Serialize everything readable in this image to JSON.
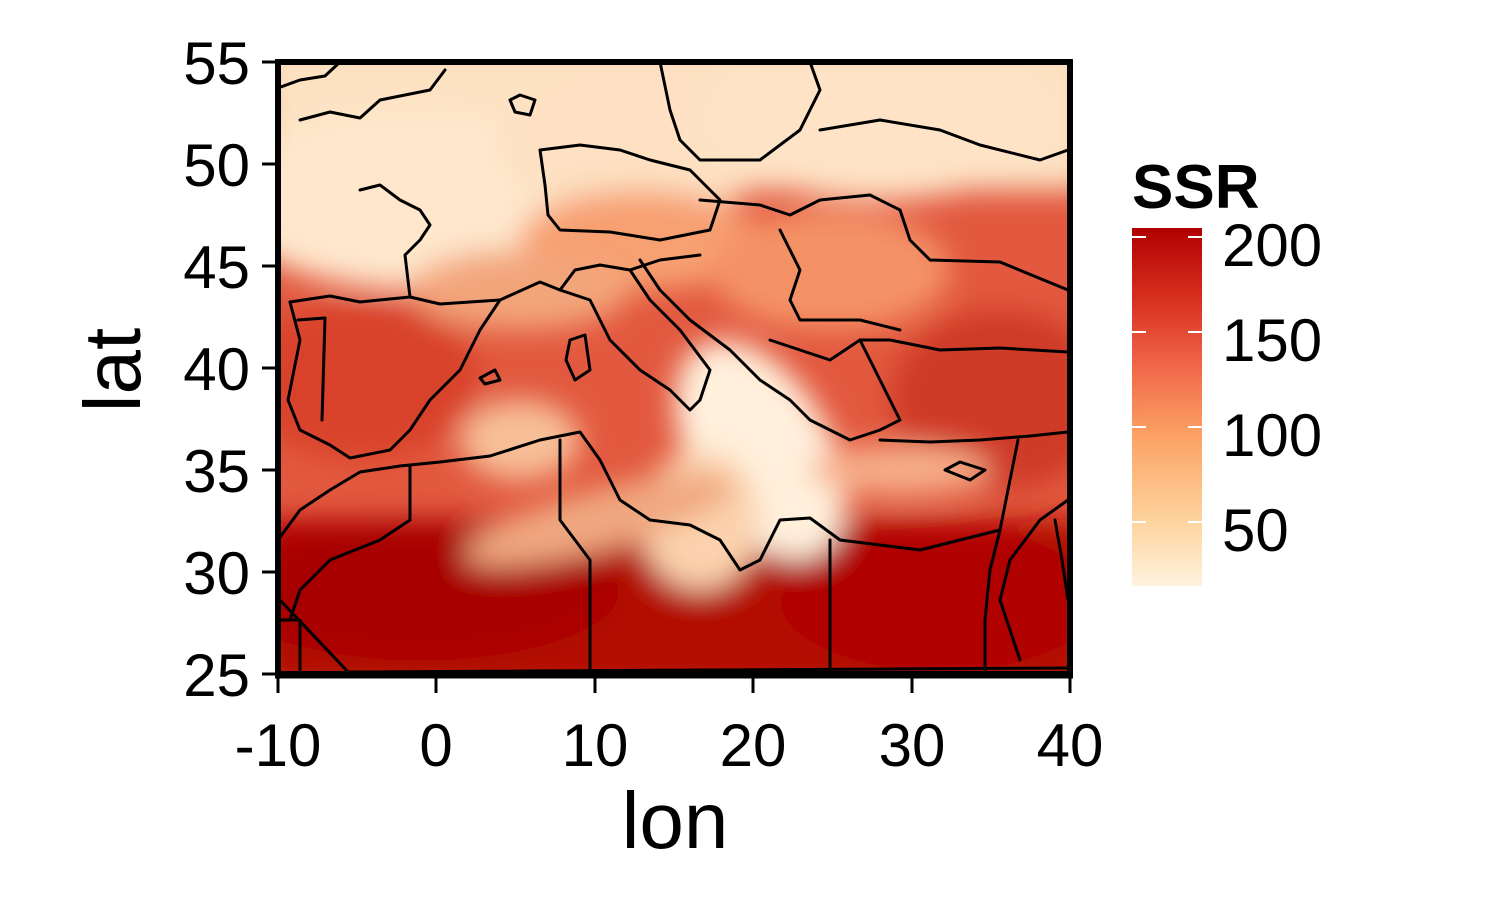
{
  "chart_data": {
    "type": "heatmap",
    "title": "",
    "xlabel": "lon",
    "ylabel": "lat",
    "xlim": [
      -10,
      40
    ],
    "ylim": [
      25,
      55
    ],
    "x_ticks": [
      "-10",
      "0",
      "10",
      "20",
      "30",
      "40"
    ],
    "y_ticks": [
      "25",
      "30",
      "35",
      "40",
      "45",
      "50",
      "55"
    ],
    "legend": {
      "title": "SSR",
      "placement": "right",
      "range": [
        0,
        210
      ],
      "ticks": [
        "50",
        "100",
        "150",
        "200"
      ],
      "colors": [
        "#fff3df",
        "#fdd49e",
        "#fca264",
        "#ef6548",
        "#d7301f",
        "#b00000"
      ]
    },
    "field_description_points": [
      {
        "lon": -5,
        "lat": 27,
        "ssr": 205
      },
      {
        "lon": 0,
        "lat": 28,
        "ssr": 200
      },
      {
        "lon": 10,
        "lat": 27,
        "ssr": 185
      },
      {
        "lon": 30,
        "lat": 27,
        "ssr": 195
      },
      {
        "lon": 35,
        "lat": 30,
        "ssr": 190
      },
      {
        "lon": -5,
        "lat": 40,
        "ssr": 150
      },
      {
        "lon": 35,
        "lat": 38,
        "ssr": 165
      },
      {
        "lon": 22,
        "lat": 35,
        "ssr": 40
      },
      {
        "lon": 2,
        "lat": 48,
        "ssr": 45
      },
      {
        "lon": 20,
        "lat": 52,
        "ssr": 40
      },
      {
        "lon": 12,
        "lat": 45,
        "ssr": 120
      },
      {
        "lon": 25,
        "lat": 45,
        "ssr": 110
      }
    ]
  }
}
